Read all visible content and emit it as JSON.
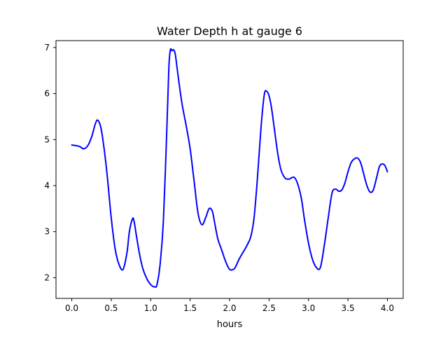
{
  "chart_data": {
    "type": "line",
    "title": "Water Depth h at gauge 6",
    "xlabel": "hours",
    "ylabel": "",
    "xlim": [
      -0.2,
      4.2
    ],
    "ylim": [
      1.55,
      7.15
    ],
    "xticks": [
      0.0,
      0.5,
      1.0,
      1.5,
      2.0,
      2.5,
      3.0,
      3.5,
      4.0
    ],
    "xtick_labels": [
      "0.0",
      "0.5",
      "1.0",
      "1.5",
      "2.0",
      "2.5",
      "3.0",
      "3.5",
      "4.0"
    ],
    "yticks": [
      2,
      3,
      4,
      5,
      6,
      7
    ],
    "ytick_labels": [
      "2",
      "3",
      "4",
      "5",
      "6",
      "7"
    ],
    "grid": false,
    "legend": "none",
    "series": [
      {
        "color": "#0000ff",
        "x": [
          0.0,
          0.05,
          0.1,
          0.15,
          0.2,
          0.25,
          0.3,
          0.33,
          0.37,
          0.41,
          0.45,
          0.5,
          0.55,
          0.6,
          0.65,
          0.7,
          0.73,
          0.77,
          0.79,
          0.82,
          0.86,
          0.9,
          0.95,
          1.0,
          1.05,
          1.08,
          1.12,
          1.16,
          1.2,
          1.23,
          1.25,
          1.27,
          1.29,
          1.31,
          1.33,
          1.36,
          1.4,
          1.45,
          1.5,
          1.55,
          1.6,
          1.65,
          1.7,
          1.74,
          1.78,
          1.81,
          1.85,
          1.9,
          1.95,
          2.0,
          2.05,
          2.08,
          2.12,
          2.17,
          2.22,
          2.27,
          2.31,
          2.35,
          2.4,
          2.44,
          2.47,
          2.5,
          2.53,
          2.57,
          2.61,
          2.65,
          2.7,
          2.75,
          2.8,
          2.83,
          2.87,
          2.91,
          2.95,
          3.0,
          3.05,
          3.1,
          3.15,
          3.2,
          3.25,
          3.3,
          3.35,
          3.38,
          3.42,
          3.46,
          3.5,
          3.54,
          3.58,
          3.62,
          3.66,
          3.7,
          3.74,
          3.78,
          3.82,
          3.86,
          3.9,
          3.94,
          3.97,
          4.0
        ],
        "y": [
          4.88,
          4.87,
          4.85,
          4.8,
          4.86,
          5.05,
          5.35,
          5.42,
          5.25,
          4.8,
          4.2,
          3.3,
          2.62,
          2.28,
          2.18,
          2.55,
          3.0,
          3.28,
          3.22,
          2.9,
          2.5,
          2.2,
          1.98,
          1.85,
          1.8,
          1.85,
          2.3,
          3.2,
          5.0,
          6.55,
          6.95,
          6.93,
          6.95,
          6.87,
          6.62,
          6.22,
          5.75,
          5.3,
          4.8,
          4.1,
          3.4,
          3.15,
          3.32,
          3.5,
          3.45,
          3.2,
          2.85,
          2.6,
          2.35,
          2.18,
          2.18,
          2.25,
          2.4,
          2.55,
          2.7,
          2.9,
          3.3,
          4.1,
          5.3,
          5.98,
          6.05,
          5.95,
          5.7,
          5.2,
          4.7,
          4.35,
          4.17,
          4.14,
          4.18,
          4.16,
          4.0,
          3.72,
          3.25,
          2.75,
          2.4,
          2.22,
          2.22,
          2.7,
          3.3,
          3.85,
          3.92,
          3.88,
          3.9,
          4.05,
          4.3,
          4.5,
          4.58,
          4.6,
          4.5,
          4.25,
          4.0,
          3.86,
          3.9,
          4.15,
          4.42,
          4.47,
          4.43,
          4.3
        ]
      }
    ]
  }
}
